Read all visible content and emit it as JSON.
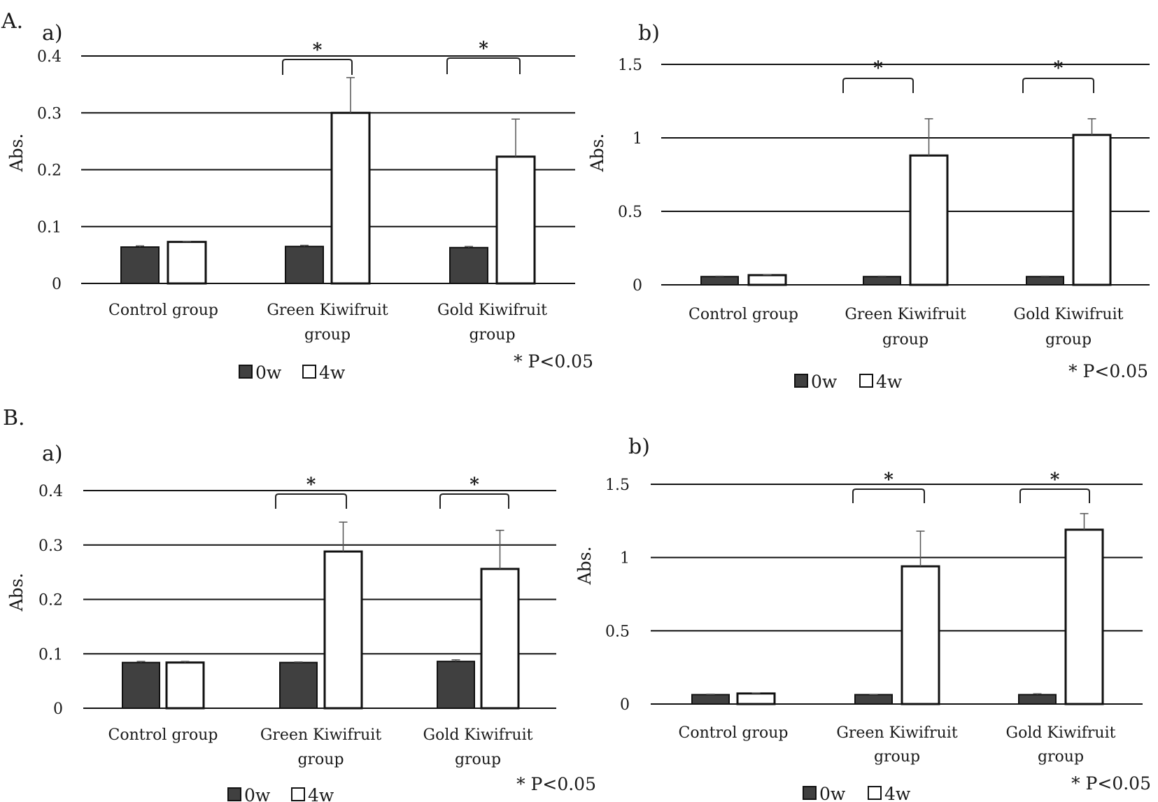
{
  "figure": {
    "section_labels": [
      "A.",
      "B."
    ],
    "panel_labels": [
      "a)",
      "b)",
      "a)",
      "b)"
    ]
  },
  "colors": {
    "bar_0w": "#404040",
    "bar_4w": "#ffffff",
    "bar_outline": "#111111",
    "gridline": "#111111",
    "error_bar": "#555555"
  },
  "chart_data": [
    {
      "id": "A-a",
      "section": "A.",
      "panel": "a)",
      "type": "bar",
      "ylabel": "Abs.",
      "xlabel": "",
      "ylim": [
        0,
        0.4
      ],
      "yticks": [
        "0",
        "0.1",
        "0.2",
        "0.3",
        "0.4"
      ],
      "ytick_values": [
        0,
        0.1,
        0.2,
        0.3,
        0.4
      ],
      "grid": true,
      "categories": [
        [
          "Control group"
        ],
        [
          "Green Kiwifruit",
          "group"
        ],
        [
          "Gold Kiwifruit",
          "group"
        ]
      ],
      "series": [
        {
          "name": "0w",
          "values": [
            0.064,
            0.065,
            0.063
          ],
          "errors": [
            0.002,
            0.002,
            0.002
          ]
        },
        {
          "name": "4w",
          "values": [
            0.073,
            0.3,
            0.223
          ],
          "errors": [
            0.001,
            0.062,
            0.066
          ]
        }
      ],
      "significance": [
        {
          "category": "Green Kiwifruit group",
          "mark": "*"
        },
        {
          "category": "Gold Kiwifruit group",
          "mark": "*"
        }
      ],
      "legend": [
        "0w",
        "4w"
      ],
      "legend_position": "bottom",
      "note": "* P<0.05"
    },
    {
      "id": "A-b",
      "section": "A.",
      "panel": "b)",
      "type": "bar",
      "ylabel": "Abs.",
      "xlabel": "",
      "ylim": [
        0,
        1.5
      ],
      "yticks": [
        "0",
        "0.5",
        "1",
        "1.5"
      ],
      "ytick_values": [
        0,
        0.5,
        1,
        1.5
      ],
      "grid": true,
      "categories": [
        [
          "Control group"
        ],
        [
          "Green Kiwifruit",
          "group"
        ],
        [
          "Gold Kiwifruit",
          "group"
        ]
      ],
      "series": [
        {
          "name": "0w",
          "values": [
            0.056,
            0.056,
            0.056
          ],
          "errors": [
            0.003,
            0.003,
            0.003
          ]
        },
        {
          "name": "4w",
          "values": [
            0.066,
            0.88,
            1.02
          ],
          "errors": [
            0.003,
            0.25,
            0.11
          ]
        }
      ],
      "significance": [
        {
          "category": "Green Kiwifruit group",
          "mark": "*"
        },
        {
          "category": "Gold Kiwifruit group",
          "mark": "*"
        }
      ],
      "legend": [
        "0w",
        "4w"
      ],
      "legend_position": "bottom",
      "note": "* P<0.05"
    },
    {
      "id": "B-a",
      "section": "B.",
      "panel": "a)",
      "type": "bar",
      "ylabel": "Abs.",
      "xlabel": "",
      "ylim": [
        0,
        0.4
      ],
      "yticks": [
        "0",
        "0.1",
        "0.2",
        "0.3",
        "0.4"
      ],
      "ytick_values": [
        0,
        0.1,
        0.2,
        0.3,
        0.4
      ],
      "grid": true,
      "categories": [
        [
          "Control group"
        ],
        [
          "Green Kiwifruit",
          "group"
        ],
        [
          "Gold Kiwifruit",
          "group"
        ]
      ],
      "series": [
        {
          "name": "0w",
          "values": [
            0.084,
            0.084,
            0.086
          ],
          "errors": [
            0.002,
            0.001,
            0.003
          ]
        },
        {
          "name": "4w",
          "values": [
            0.084,
            0.288,
            0.256
          ],
          "errors": [
            0.002,
            0.054,
            0.071
          ]
        }
      ],
      "significance": [
        {
          "category": "Green Kiwifruit group",
          "mark": "*"
        },
        {
          "category": "Gold Kiwifruit group",
          "mark": "*"
        }
      ],
      "legend": [
        "0w",
        "4w"
      ],
      "legend_position": "bottom",
      "note": "* P<0.05"
    },
    {
      "id": "B-b",
      "section": "B.",
      "panel": "b)",
      "type": "bar",
      "ylabel": "Abs.",
      "xlabel": "",
      "ylim": [
        0,
        1.5
      ],
      "yticks": [
        "0",
        "0.5",
        "1",
        "1.5"
      ],
      "ytick_values": [
        0,
        0.5,
        1,
        1.5
      ],
      "grid": true,
      "categories": [
        [
          "Control group"
        ],
        [
          "Green Kiwifruit",
          "group"
        ],
        [
          "Gold Kiwifruit",
          "group"
        ]
      ],
      "series": [
        {
          "name": "0w",
          "values": [
            0.064,
            0.064,
            0.064
          ],
          "errors": [
            0.003,
            0.002,
            0.006
          ]
        },
        {
          "name": "4w",
          "values": [
            0.072,
            0.94,
            1.19
          ],
          "errors": [
            0.003,
            0.24,
            0.11
          ]
        }
      ],
      "significance": [
        {
          "category": "Green Kiwifruit group",
          "mark": "*"
        },
        {
          "category": "Gold Kiwifruit group",
          "mark": "*"
        }
      ],
      "legend": [
        "0w",
        "4w"
      ],
      "legend_position": "bottom",
      "note": "* P<0.05"
    }
  ]
}
